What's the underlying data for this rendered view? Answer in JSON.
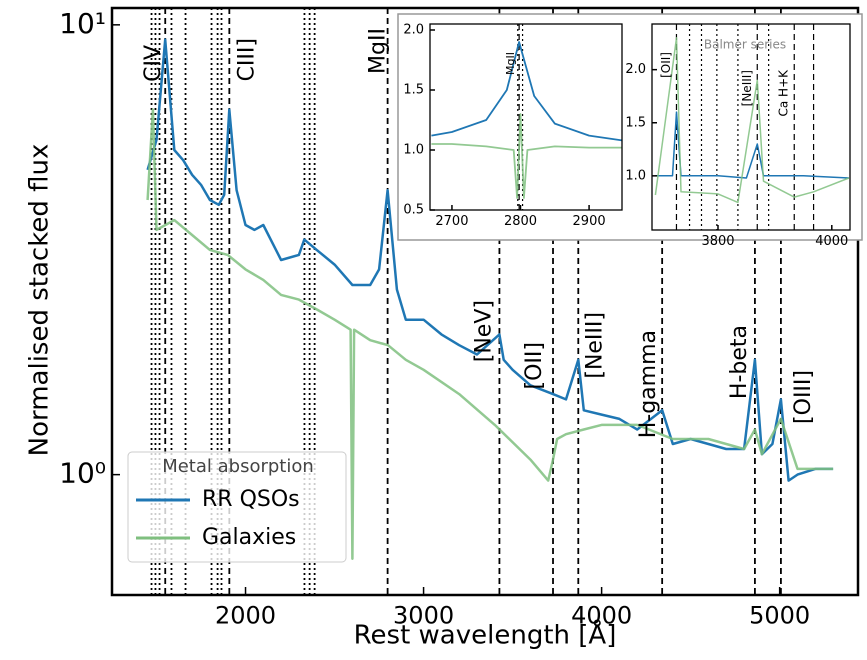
{
  "chart_data": [
    {
      "type": "line",
      "xlabel": "Rest wavelength [Å]",
      "ylabel": "Normalised stacked flux",
      "xlim": [
        1250,
        5440
      ],
      "ylim": [
        0.54,
        10.9
      ],
      "log_y": true,
      "xticks": [
        2000,
        3000,
        4000,
        5000
      ],
      "yticks": [
        {
          "value": 1,
          "label": "10⁰"
        },
        {
          "value": 10,
          "label": "10¹"
        }
      ],
      "legend": "lower left",
      "legend_title": "Metal absorption",
      "series": [
        {
          "name": "RR QSOs",
          "color": "#1f77b4",
          "x": [
            1450,
            1500,
            1549,
            1600,
            1650,
            1700,
            1750,
            1800,
            1850,
            1880,
            1909,
            1950,
            2000,
            2050,
            2100,
            2200,
            2300,
            2330,
            2400,
            2500,
            2600,
            2700,
            2750,
            2798,
            2850,
            2900,
            3000,
            3100,
            3200,
            3300,
            3426,
            3450,
            3500,
            3600,
            3727,
            3800,
            3869,
            3900,
            4000,
            4100,
            4200,
            4340,
            4400,
            4500,
            4600,
            4700,
            4800,
            4861,
            4900,
            4959,
            5007,
            5050,
            5100,
            5200,
            5300
          ],
          "values": [
            4.76,
            5.55,
            9.27,
            5.27,
            5.0,
            4.64,
            4.41,
            4.08,
            3.98,
            4.19,
            6.48,
            4.29,
            3.59,
            3.5,
            3.59,
            3.0,
            3.08,
            3.33,
            3.16,
            2.93,
            2.64,
            2.64,
            2.86,
            4.29,
            2.58,
            2.21,
            2.21,
            2.05,
            1.94,
            1.85,
            2.05,
            1.8,
            1.71,
            1.58,
            1.51,
            1.47,
            1.8,
            1.39,
            1.36,
            1.33,
            1.26,
            1.39,
            1.17,
            1.2,
            1.17,
            1.14,
            1.14,
            1.8,
            1.11,
            1.17,
            1.47,
            0.97,
            1.0,
            1.03,
            1.03
          ]
        },
        {
          "name": "Galaxies",
          "color": "#7fbf7f",
          "x": [
            1450,
            1480,
            1500,
            1600,
            1700,
            1800,
            1900,
            2000,
            2100,
            2200,
            2300,
            2400,
            2500,
            2590,
            2600,
            2610,
            2700,
            2800,
            2900,
            3000,
            3200,
            3400,
            3600,
            3700,
            3727,
            3750,
            3800,
            3900,
            4000,
            4200,
            4400,
            4600,
            4800,
            4861,
            4900,
            5007,
            5100,
            5300
          ],
          "values": [
            4.08,
            6.48,
            3.5,
            3.68,
            3.41,
            3.16,
            3.08,
            2.86,
            2.71,
            2.51,
            2.45,
            2.33,
            2.21,
            2.1,
            0.65,
            2.1,
            1.99,
            1.94,
            1.8,
            1.71,
            1.51,
            1.29,
            1.08,
            0.97,
            1.08,
            1.2,
            1.23,
            1.26,
            1.29,
            1.29,
            1.2,
            1.2,
            1.14,
            1.26,
            1.11,
            1.33,
            1.03,
            1.03
          ]
        }
      ],
      "vlines": [
        {
          "x": 1549,
          "label": "CIV",
          "style": "dashed"
        },
        {
          "x": 1909,
          "label": "CIII]",
          "style": "dashed"
        },
        {
          "x": 2798,
          "label": "MgII",
          "style": "dashed"
        },
        {
          "x": 3426,
          "label": "[NeV]",
          "style": "dashed"
        },
        {
          "x": 3727,
          "label": "[OII]",
          "style": "dashed"
        },
        {
          "x": 3869,
          "label": "[NeIII]",
          "style": "dashed"
        },
        {
          "x": 4340,
          "label": "H-gamma",
          "style": "dashed"
        },
        {
          "x": 4861,
          "label": "H-beta",
          "style": "dashed"
        },
        {
          "x": 5007,
          "label": "[OIII]",
          "style": "dashed"
        },
        {
          "x": 1472,
          "style": "dotted"
        },
        {
          "x": 1494,
          "style": "dotted"
        },
        {
          "x": 1517,
          "style": "dotted"
        },
        {
          "x": 1584,
          "style": "dotted"
        },
        {
          "x": 1663,
          "style": "dotted"
        },
        {
          "x": 1809,
          "style": "dotted"
        },
        {
          "x": 1843,
          "style": "dotted"
        },
        {
          "x": 1865,
          "style": "dotted"
        },
        {
          "x": 2331,
          "style": "dotted"
        },
        {
          "x": 2360,
          "style": "dotted"
        },
        {
          "x": 2388,
          "style": "dotted"
        }
      ]
    },
    {
      "type": "line",
      "xlim": [
        2668,
        2948
      ],
      "ylim": [
        0.5,
        2.05
      ],
      "xticks": [
        2700,
        2800,
        2900
      ],
      "yticks": [
        0.5,
        {
          "value": 1,
          "label": "1.0"
        },
        1.5,
        {
          "value": 2,
          "label": "2.0"
        }
      ],
      "series": [
        {
          "color": "#1f77b4",
          "x": [
            2670,
            2700,
            2750,
            2780,
            2798,
            2820,
            2850,
            2900,
            2948
          ],
          "values": [
            1.12,
            1.15,
            1.25,
            1.5,
            1.9,
            1.45,
            1.22,
            1.12,
            1.08
          ]
        },
        {
          "color": "#7fbf7f",
          "x": [
            2670,
            2700,
            2750,
            2790,
            2795,
            2800,
            2805,
            2810,
            2850,
            2900,
            2948
          ],
          "values": [
            1.05,
            1.05,
            1.03,
            1.0,
            0.6,
            1.3,
            0.6,
            1.0,
            1.03,
            1.02,
            1.02
          ]
        }
      ],
      "vlines": [
        {
          "x": 2798,
          "label": "MgII",
          "style": "dashed"
        },
        {
          "x": 2796,
          "style": "dotted"
        },
        {
          "x": 2803,
          "style": "dotted"
        }
      ]
    },
    {
      "type": "line",
      "xlim": [
        3684,
        4032
      ],
      "ylim": [
        0.49,
        2.43
      ],
      "xticks": [
        3800,
        4000
      ],
      "yticks": [
        {
          "value": 1,
          "label": "1.0"
        },
        1.5,
        {
          "value": 2,
          "label": "2.0"
        }
      ],
      "annotations": [
        {
          "text": "Balmer series"
        }
      ],
      "series": [
        {
          "color": "#1f77b4",
          "x": [
            3690,
            3720,
            3727,
            3735,
            3800,
            3850,
            3869,
            3880,
            3950,
            4030
          ],
          "values": [
            1.0,
            1.0,
            1.6,
            1.0,
            1.0,
            0.98,
            1.3,
            1.0,
            1.0,
            0.98
          ]
        },
        {
          "color": "#7fbf7f",
          "x": [
            3690,
            3727,
            3735,
            3800,
            3835,
            3869,
            3880,
            3934,
            3968,
            4030
          ],
          "values": [
            0.82,
            2.3,
            0.85,
            0.83,
            0.75,
            1.9,
            0.95,
            0.8,
            0.85,
            0.98
          ]
        }
      ],
      "vlines": [
        {
          "x": 3727,
          "label": "[OII]",
          "style": "dashed"
        },
        {
          "x": 3869,
          "label": "[NeIII]",
          "style": "dashed"
        },
        {
          "x": 3934,
          "label": "Ca H+K",
          "style": "dashed"
        },
        {
          "x": 3968,
          "style": "dashed"
        },
        {
          "x": 3750,
          "style": "dotted"
        },
        {
          "x": 3771,
          "style": "dotted"
        },
        {
          "x": 3798,
          "style": "dotted"
        },
        {
          "x": 3835,
          "style": "dotted"
        },
        {
          "x": 3889,
          "style": "dotted"
        }
      ]
    }
  ]
}
